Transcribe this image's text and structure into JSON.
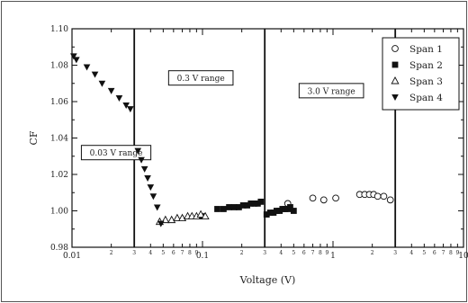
{
  "chart_data": {
    "type": "scatter",
    "xlabel": "Voltage (V)",
    "ylabel": "CF",
    "x_scale": "log",
    "xlim": [
      0.01,
      10
    ],
    "ylim": [
      0.98,
      1.1
    ],
    "y_ticks": [
      "0.98",
      "1.00",
      "1.02",
      "1.04",
      "1.06",
      "1.08",
      "1.10"
    ],
    "x_major_ticks": [
      {
        "value": 0.01,
        "label": "0.01"
      },
      {
        "value": 0.1,
        "label": "0.1"
      },
      {
        "value": 1,
        "label": "1"
      },
      {
        "value": 10,
        "label": "10"
      }
    ],
    "x_minor_labels": [
      "2",
      "3",
      "4",
      "5",
      "6",
      "7",
      "8",
      "9"
    ],
    "range_dividers": [
      0.03,
      0.3,
      3
    ],
    "annotations": [
      {
        "text": "0.03 V range",
        "x": 0.0118,
        "y": 1.032
      },
      {
        "text": "0.3 V range",
        "x": 0.055,
        "y": 1.073
      },
      {
        "text": "3.0 V range",
        "x": 0.55,
        "y": 1.066
      }
    ],
    "legend_position": "top-right",
    "series": [
      {
        "name": "Span 1",
        "marker": "circle-open",
        "points": [
          [
            0.45,
            1.004
          ],
          [
            0.7,
            1.007
          ],
          [
            0.85,
            1.006
          ],
          [
            1.05,
            1.007
          ],
          [
            1.6,
            1.009
          ],
          [
            1.75,
            1.009
          ],
          [
            1.9,
            1.009
          ],
          [
            2.05,
            1.009
          ],
          [
            2.2,
            1.008
          ],
          [
            2.45,
            1.008
          ],
          [
            2.75,
            1.006
          ]
        ]
      },
      {
        "name": "Span 2",
        "marker": "square-filled",
        "points": [
          [
            0.1,
            0.997
          ],
          [
            0.13,
            1.001
          ],
          [
            0.145,
            1.001
          ],
          [
            0.16,
            1.002
          ],
          [
            0.175,
            1.002
          ],
          [
            0.19,
            1.002
          ],
          [
            0.205,
            1.003
          ],
          [
            0.22,
            1.003
          ],
          [
            0.235,
            1.004
          ],
          [
            0.25,
            1.004
          ],
          [
            0.265,
            1.004
          ],
          [
            0.28,
            1.005
          ],
          [
            0.31,
            0.998
          ],
          [
            0.33,
            0.999
          ],
          [
            0.35,
            0.999
          ],
          [
            0.37,
            1.0
          ],
          [
            0.39,
            1.0
          ],
          [
            0.41,
            1.001
          ],
          [
            0.43,
            1.001
          ],
          [
            0.45,
            1.001
          ],
          [
            0.47,
            1.002
          ],
          [
            0.5,
            1.0
          ]
        ]
      },
      {
        "name": "Span 3",
        "marker": "triangle-up-open",
        "points": [
          [
            0.047,
            0.994
          ],
          [
            0.052,
            0.995
          ],
          [
            0.058,
            0.995
          ],
          [
            0.064,
            0.996
          ],
          [
            0.07,
            0.996
          ],
          [
            0.077,
            0.997
          ],
          [
            0.083,
            0.997
          ],
          [
            0.09,
            0.997
          ],
          [
            0.097,
            0.998
          ],
          [
            0.105,
            0.997
          ]
        ]
      },
      {
        "name": "Span 4",
        "marker": "triangle-down-filled",
        "points": [
          [
            0.0103,
            1.085
          ],
          [
            0.0108,
            1.083
          ],
          [
            0.013,
            1.079
          ],
          [
            0.015,
            1.075
          ],
          [
            0.017,
            1.07
          ],
          [
            0.02,
            1.066
          ],
          [
            0.023,
            1.062
          ],
          [
            0.026,
            1.058
          ],
          [
            0.028,
            1.056
          ],
          [
            0.032,
            1.033
          ],
          [
            0.034,
            1.028
          ],
          [
            0.036,
            1.023
          ],
          [
            0.038,
            1.018
          ],
          [
            0.04,
            1.013
          ],
          [
            0.042,
            1.008
          ],
          [
            0.045,
            1.002
          ],
          [
            0.048,
            0.993
          ]
        ]
      }
    ]
  }
}
